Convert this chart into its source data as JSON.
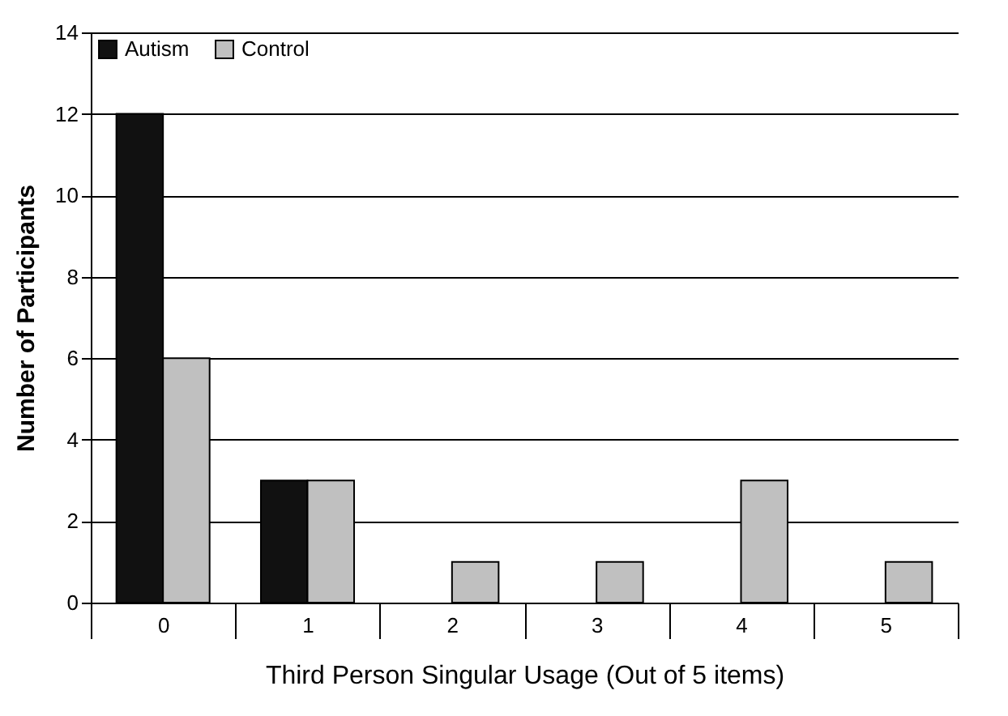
{
  "chart_data": {
    "type": "bar",
    "xlabel": "Third Person Singular Usage (Out of 5 items)",
    "ylabel": "Number of Participants",
    "categories": [
      "0",
      "1",
      "2",
      "3",
      "4",
      "5"
    ],
    "series": [
      {
        "name": "Autism",
        "color": "#111111",
        "values": [
          12,
          3,
          0,
          0,
          0,
          0
        ]
      },
      {
        "name": "Control",
        "color": "#c0c0c0",
        "values": [
          6,
          3,
          1,
          1,
          3,
          1
        ]
      }
    ],
    "ylim": [
      0,
      14
    ],
    "yticks": [
      0,
      2,
      4,
      6,
      8,
      10,
      12,
      14
    ],
    "grid": "y",
    "legend": "top left"
  }
}
